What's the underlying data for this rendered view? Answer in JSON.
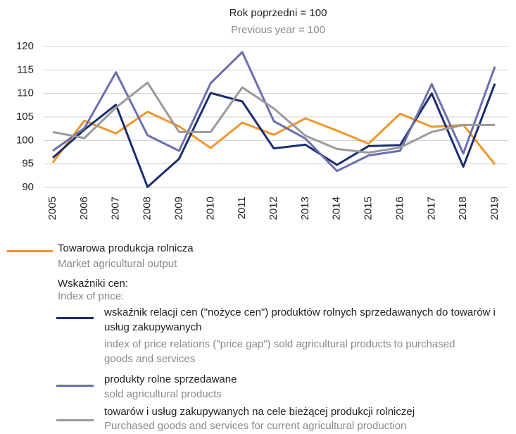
{
  "chart_data": {
    "type": "line",
    "title": "Rok poprzedni = 100",
    "subtitle": "Previous year = 100",
    "categories": [
      "2005",
      "2006",
      "2007",
      "2008",
      "2009",
      "2010",
      "2011",
      "2012",
      "2013",
      "2014",
      "2015",
      "2016",
      "2017",
      "2018",
      "2019"
    ],
    "ylim": [
      90,
      120
    ],
    "yticks": [
      90,
      95,
      100,
      105,
      110,
      115,
      120
    ],
    "grid": true,
    "legend_heading": "Wskaźniki cen:",
    "legend_heading_en": "Index of price:",
    "series": [
      {
        "name": "Towarowa produkcja rolnicza",
        "name_en": "Market agricultural output",
        "color": "#f0962a",
        "values": [
          95.3,
          104.2,
          101.5,
          106.1,
          103.0,
          98.4,
          103.8,
          101.2,
          104.7,
          102.1,
          99.3,
          105.7,
          102.9,
          103.3,
          94.9
        ]
      },
      {
        "name": "wskaźnik relacji cen (\"nożyce cen\") produktów rolnych sprzedawanych do towarów i usług zakupywanych",
        "name_en": "index of price relations (\"price gap\") sold agricultural products to purchased goods and services",
        "color": "#1a2e6e",
        "values": [
          96.3,
          102.3,
          107.6,
          90.1,
          96.1,
          110.1,
          108.3,
          98.3,
          99.1,
          94.8,
          98.8,
          99.0,
          110.0,
          94.4,
          112.1
        ]
      },
      {
        "name": "produkty rolne sprzedawane",
        "name_en": "sold agricultural products",
        "color": "#6b6fae",
        "values": [
          97.8,
          102.6,
          114.5,
          101.1,
          97.8,
          112.2,
          118.8,
          104.1,
          100.4,
          93.5,
          96.8,
          97.8,
          112.0,
          97.2,
          115.7
        ]
      },
      {
        "name": "towarów i usług zakupywanych na cele bieżącej produkcji rolniczej",
        "name_en": "Purchased goods and services for current agricultural production",
        "color": "#9a9a9a",
        "values": [
          101.8,
          100.5,
          107.0,
          112.3,
          101.8,
          101.8,
          111.3,
          106.8,
          101.0,
          98.2,
          97.4,
          98.5,
          101.8,
          103.3,
          103.3
        ]
      }
    ]
  }
}
